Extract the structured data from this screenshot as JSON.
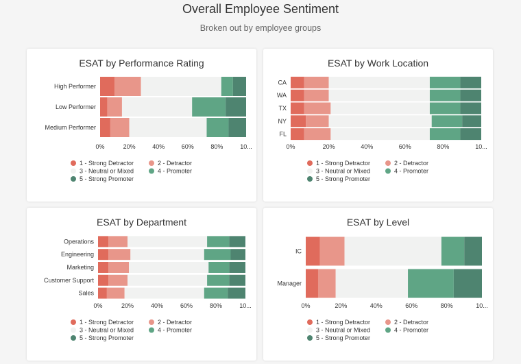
{
  "header": {
    "title": "Overall Employee Sentiment",
    "subtitle": "Broken out by employee groups"
  },
  "legend_items": [
    {
      "label": "1 - Strong Detractor",
      "color": "#e06b5c"
    },
    {
      "label": "2 - Detractor",
      "color": "#e8968a"
    },
    {
      "label": "3 - Neutral or Mixed",
      "color": "#f1f2f1"
    },
    {
      "label": "4 - Promoter",
      "color": "#5fa585"
    },
    {
      "label": "5 - Strong Promoter",
      "color": "#4e8470"
    }
  ],
  "x_tick_labels": [
    "0%",
    "20%",
    "40%",
    "60%",
    "80%",
    "10..."
  ],
  "chart_data": [
    {
      "type": "bar",
      "stacked": true,
      "orientation": "horizontal",
      "title": "ESAT by Performance Rating",
      "categories": [
        "High Performer",
        "Low Performer",
        "Medium Performer"
      ],
      "series": [
        {
          "name": "1 - Strong Detractor",
          "values": [
            10,
            5,
            7
          ]
        },
        {
          "name": "2 - Detractor",
          "values": [
            18,
            10,
            13
          ]
        },
        {
          "name": "3 - Neutral or Mixed",
          "values": [
            55,
            48,
            53
          ]
        },
        {
          "name": "4 - Promoter",
          "values": [
            8,
            23,
            15
          ]
        },
        {
          "name": "5 - Strong Promoter",
          "values": [
            9,
            14,
            12
          ]
        }
      ],
      "xlim": [
        0,
        100
      ],
      "grid": false,
      "legend": "bottom"
    },
    {
      "type": "bar",
      "stacked": true,
      "orientation": "horizontal",
      "title": "ESAT by Work Location",
      "categories": [
        "CA",
        "WA",
        "TX",
        "NY",
        "FL"
      ],
      "series": [
        {
          "name": "1 - Strong Detractor",
          "values": [
            7,
            7,
            7,
            8,
            7
          ]
        },
        {
          "name": "2 - Detractor",
          "values": [
            13,
            13,
            14,
            12,
            14
          ]
        },
        {
          "name": "3 - Neutral or Mixed",
          "values": [
            53,
            53,
            52,
            54,
            52
          ]
        },
        {
          "name": "4 - Promoter",
          "values": [
            16,
            16,
            16,
            16,
            16
          ]
        },
        {
          "name": "5 - Strong Promoter",
          "values": [
            11,
            11,
            11,
            10,
            11
          ]
        }
      ],
      "xlim": [
        0,
        100
      ],
      "grid": false,
      "legend": "bottom"
    },
    {
      "type": "bar",
      "stacked": true,
      "orientation": "horizontal",
      "title": "ESAT by Department",
      "categories": [
        "Operations",
        "Engineering",
        "Marketing",
        "Customer Support",
        "Sales"
      ],
      "series": [
        {
          "name": "1 - Strong Detractor",
          "values": [
            7,
            7,
            7,
            7,
            6
          ]
        },
        {
          "name": "2 - Detractor",
          "values": [
            13,
            15,
            14,
            13,
            12
          ]
        },
        {
          "name": "3 - Neutral or Mixed",
          "values": [
            54,
            50,
            54,
            54,
            54
          ]
        },
        {
          "name": "4 - Promoter",
          "values": [
            15,
            18,
            14,
            15,
            16
          ]
        },
        {
          "name": "5 - Strong Promoter",
          "values": [
            11,
            10,
            11,
            11,
            12
          ]
        }
      ],
      "xlim": [
        0,
        100
      ],
      "grid": false,
      "legend": "bottom"
    },
    {
      "type": "bar",
      "stacked": true,
      "orientation": "horizontal",
      "title": "ESAT by Level",
      "categories": [
        "IC",
        "Manager"
      ],
      "series": [
        {
          "name": "1 - Strong Detractor",
          "values": [
            8,
            7
          ]
        },
        {
          "name": "2 - Detractor",
          "values": [
            14,
            10
          ]
        },
        {
          "name": "3 - Neutral or Mixed",
          "values": [
            55,
            41
          ]
        },
        {
          "name": "4 - Promoter",
          "values": [
            13,
            26
          ]
        },
        {
          "name": "5 - Strong Promoter",
          "values": [
            10,
            16
          ]
        }
      ],
      "xlim": [
        0,
        100
      ],
      "grid": false,
      "legend": "bottom"
    }
  ]
}
